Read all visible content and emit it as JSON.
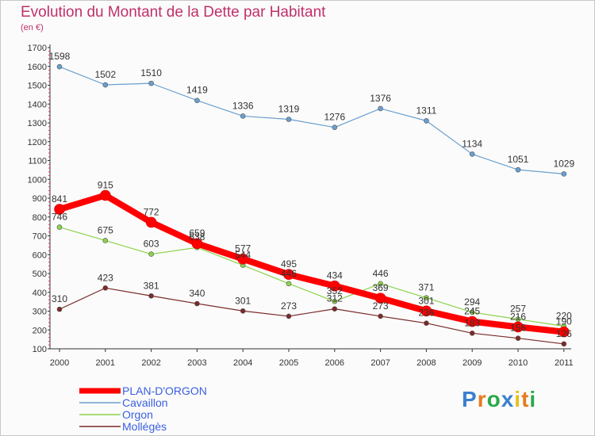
{
  "chart_data": {
    "type": "line",
    "title": "Evolution du Montant de la Dette par Habitant",
    "subtitle": "(en €)",
    "x": [
      "2000",
      "2001",
      "2002",
      "2003",
      "2004",
      "2005",
      "2006",
      "2007",
      "2008",
      "2009",
      "2010",
      "2011"
    ],
    "ylim": [
      100,
      1700
    ],
    "yticks": [
      100,
      200,
      300,
      400,
      500,
      600,
      700,
      800,
      900,
      1000,
      1100,
      1200,
      1300,
      1400,
      1500,
      1600,
      1700
    ],
    "grid": false,
    "legend_position": "bottom-left",
    "series": [
      {
        "name": "PLAN-D'ORGON",
        "color": "#ff0000",
        "values": [
          841,
          915,
          772,
          659,
          577,
          495,
          434,
          369,
          301,
          245,
          216,
          190
        ]
      },
      {
        "name": "Cavaillon",
        "color": "#6a9fd0",
        "values": [
          1598,
          1502,
          1510,
          1419,
          1336,
          1319,
          1276,
          1376,
          1311,
          1134,
          1051,
          1029
        ]
      },
      {
        "name": "Orgon",
        "color": "#8cd24a",
        "values": [
          746,
          675,
          603,
          638,
          544,
          446,
          352,
          446,
          371,
          294,
          257,
          220
        ]
      },
      {
        "name": "Mollégès",
        "color": "#7a2a2a",
        "values": [
          310,
          423,
          381,
          340,
          301,
          273,
          312,
          273,
          236,
          183,
          156,
          126
        ]
      }
    ]
  },
  "logo": {
    "text": "Proxiti"
  }
}
